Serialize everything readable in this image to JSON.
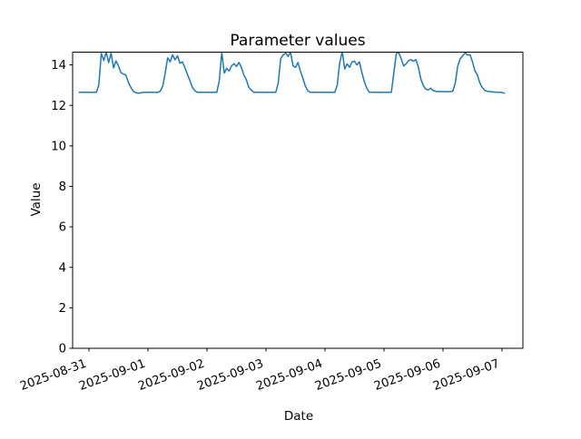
{
  "chart_data": {
    "type": "line",
    "title": "Parameter values",
    "xlabel": "Date",
    "ylabel": "Value",
    "legend": null,
    "grid": false,
    "line_color": "#1f77b4",
    "axis_color": "#000000",
    "background_color": "#ffffff",
    "y_ticks": [
      0,
      2,
      4,
      6,
      8,
      10,
      12,
      14
    ],
    "ylim": [
      0,
      14.63
    ],
    "x_tick_labels": [
      "2025-08-31",
      "2025-09-01",
      "2025-09-02",
      "2025-09-03",
      "2025-09-04",
      "2025-09-05",
      "2025-09-06",
      "2025-09-07"
    ],
    "x_ticks_hours": [
      0,
      24,
      48,
      72,
      96,
      120,
      144,
      168
    ],
    "xlim_hours": [
      -6.65,
      176.5
    ],
    "x_unit": "hours since 2025-08-31 00:00",
    "series": [
      {
        "x_start_hour": -4,
        "x_step_hours": 1,
        "x_hours": [
          -4,
          -3,
          -2,
          -1,
          0,
          1,
          2,
          3,
          4,
          5,
          6,
          7,
          8,
          9,
          10,
          11,
          12,
          13,
          14,
          15,
          16,
          17,
          18,
          19,
          20,
          21,
          22,
          23,
          24,
          25,
          26,
          27,
          28,
          29,
          30,
          31,
          32,
          33,
          34,
          35,
          36,
          37,
          38,
          39,
          40,
          41,
          42,
          43,
          44,
          45,
          46,
          47,
          48,
          49,
          50,
          51,
          52,
          53,
          54,
          55,
          56,
          57,
          58,
          59,
          60,
          61,
          62,
          63,
          64,
          65,
          66,
          67,
          68,
          69,
          70,
          71,
          72,
          73,
          74,
          75,
          76,
          77,
          78,
          79,
          80,
          81,
          82,
          83,
          84,
          85,
          86,
          87,
          88,
          89,
          90,
          91,
          92,
          93,
          94,
          95,
          96,
          97,
          98,
          99,
          100,
          101,
          102,
          103,
          104,
          105,
          106,
          107,
          108,
          109,
          110,
          111,
          112,
          113,
          114,
          115,
          116,
          117,
          118,
          119,
          120,
          121,
          122,
          123,
          124,
          125,
          126,
          127,
          128,
          129,
          130,
          131,
          132,
          133,
          134,
          135,
          136,
          137,
          138,
          139,
          140,
          141,
          142,
          143,
          144,
          145,
          146,
          147,
          148,
          149,
          150,
          151,
          152,
          153,
          154,
          155,
          156,
          157,
          158,
          159,
          160,
          161,
          162,
          163,
          164,
          165,
          166,
          167,
          168,
          169
        ],
        "values": [
          12.65,
          12.65,
          12.65,
          12.65,
          12.65,
          12.65,
          12.65,
          12.65,
          13.0,
          14.57,
          14.22,
          14.63,
          14.12,
          14.58,
          13.85,
          14.2,
          13.95,
          13.62,
          13.55,
          13.5,
          13.15,
          12.9,
          12.7,
          12.63,
          12.6,
          12.62,
          12.64,
          12.65,
          12.65,
          12.65,
          12.65,
          12.65,
          12.65,
          12.7,
          12.95,
          13.6,
          14.35,
          14.15,
          14.5,
          14.25,
          14.45,
          14.08,
          14.15,
          13.88,
          13.55,
          13.25,
          12.9,
          12.73,
          12.65,
          12.65,
          12.65,
          12.65,
          12.65,
          12.65,
          12.65,
          12.65,
          12.65,
          13.2,
          14.63,
          13.6,
          13.83,
          13.7,
          13.95,
          14.06,
          13.92,
          14.12,
          13.88,
          13.5,
          13.28,
          12.9,
          12.76,
          12.65,
          12.65,
          12.65,
          12.65,
          12.65,
          12.65,
          12.65,
          12.65,
          12.65,
          12.65,
          13.1,
          14.3,
          14.5,
          14.58,
          14.42,
          14.63,
          13.95,
          13.88,
          14.12,
          13.7,
          13.35,
          12.96,
          12.73,
          12.65,
          12.65,
          12.65,
          12.65,
          12.65,
          12.65,
          12.65,
          12.65,
          12.65,
          12.65,
          12.65,
          13.0,
          14.1,
          14.67,
          13.8,
          14.05,
          13.88,
          14.15,
          14.18,
          14.0,
          14.15,
          13.63,
          13.18,
          12.85,
          12.66,
          12.65,
          12.65,
          12.65,
          12.65,
          12.65,
          12.65,
          12.65,
          12.65,
          12.65,
          13.6,
          14.55,
          14.62,
          14.3,
          13.95,
          14.05,
          14.22,
          14.26,
          14.18,
          14.26,
          13.88,
          13.3,
          12.98,
          12.8,
          12.76,
          12.85,
          12.73,
          12.7,
          12.68,
          12.68,
          12.68,
          12.68,
          12.68,
          12.68,
          12.7,
          13.1,
          13.95,
          14.3,
          14.45,
          14.6,
          14.48,
          14.5,
          14.15,
          13.7,
          13.5,
          13.1,
          12.88,
          12.75,
          12.7,
          12.68,
          12.67,
          12.66,
          12.65,
          12.65,
          12.64,
          12.6
        ]
      }
    ]
  }
}
